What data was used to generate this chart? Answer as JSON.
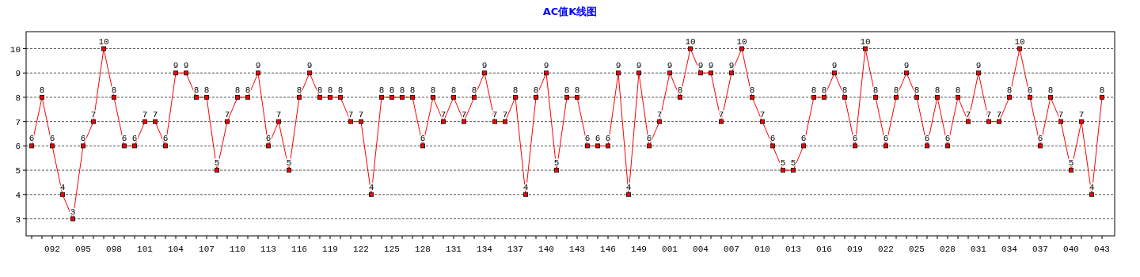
{
  "chart_data": {
    "type": "line",
    "title": "AC值K线图",
    "categories": [
      null,
      null,
      "092",
      null,
      null,
      "095",
      null,
      null,
      "098",
      null,
      null,
      "101",
      null,
      null,
      "104",
      null,
      null,
      "107",
      null,
      null,
      "110",
      null,
      null,
      "113",
      null,
      null,
      "116",
      null,
      null,
      "119",
      null,
      null,
      "122",
      null,
      null,
      "125",
      null,
      null,
      "128",
      null,
      null,
      "131",
      null,
      null,
      "134",
      null,
      null,
      "137",
      null,
      null,
      "140",
      null,
      null,
      "143",
      null,
      null,
      "146",
      null,
      null,
      "149",
      null,
      null,
      "001",
      null,
      null,
      "004",
      null,
      null,
      "007",
      null,
      null,
      "010",
      null,
      null,
      "013",
      null,
      null,
      "016",
      null,
      null,
      "019",
      null,
      null,
      "022",
      null,
      null,
      "025",
      null,
      null,
      "028",
      null,
      null,
      "031",
      null,
      null,
      "034",
      null,
      null,
      "037",
      null,
      null,
      "040",
      null,
      null,
      "043"
    ],
    "values": [
      6,
      8,
      6,
      4,
      3,
      6,
      7,
      10,
      8,
      6,
      6,
      7,
      7,
      6,
      9,
      9,
      8,
      8,
      5,
      7,
      8,
      8,
      9,
      6,
      7,
      5,
      8,
      9,
      8,
      8,
      8,
      7,
      7,
      4,
      8,
      8,
      8,
      8,
      6,
      8,
      7,
      8,
      7,
      8,
      9,
      7,
      7,
      8,
      4,
      8,
      9,
      5,
      8,
      8,
      6,
      6,
      6,
      9,
      4,
      9,
      6,
      7,
      9,
      8,
      10,
      9,
      9,
      7,
      9,
      10,
      8,
      7,
      6,
      5,
      5,
      6,
      8,
      8,
      9,
      8,
      6,
      10,
      8,
      6,
      8,
      9,
      8,
      6,
      8,
      6,
      8,
      7,
      9,
      7,
      7,
      8,
      10,
      8,
      6,
      8,
      7,
      5,
      7,
      4,
      8
    ],
    "color": "#ff0000",
    "ylim": [
      2.3,
      10.7
    ],
    "yticks": [
      3,
      4,
      5,
      6,
      7,
      8,
      9,
      10
    ],
    "grid": "y",
    "marker": "square",
    "data_labels": true
  }
}
